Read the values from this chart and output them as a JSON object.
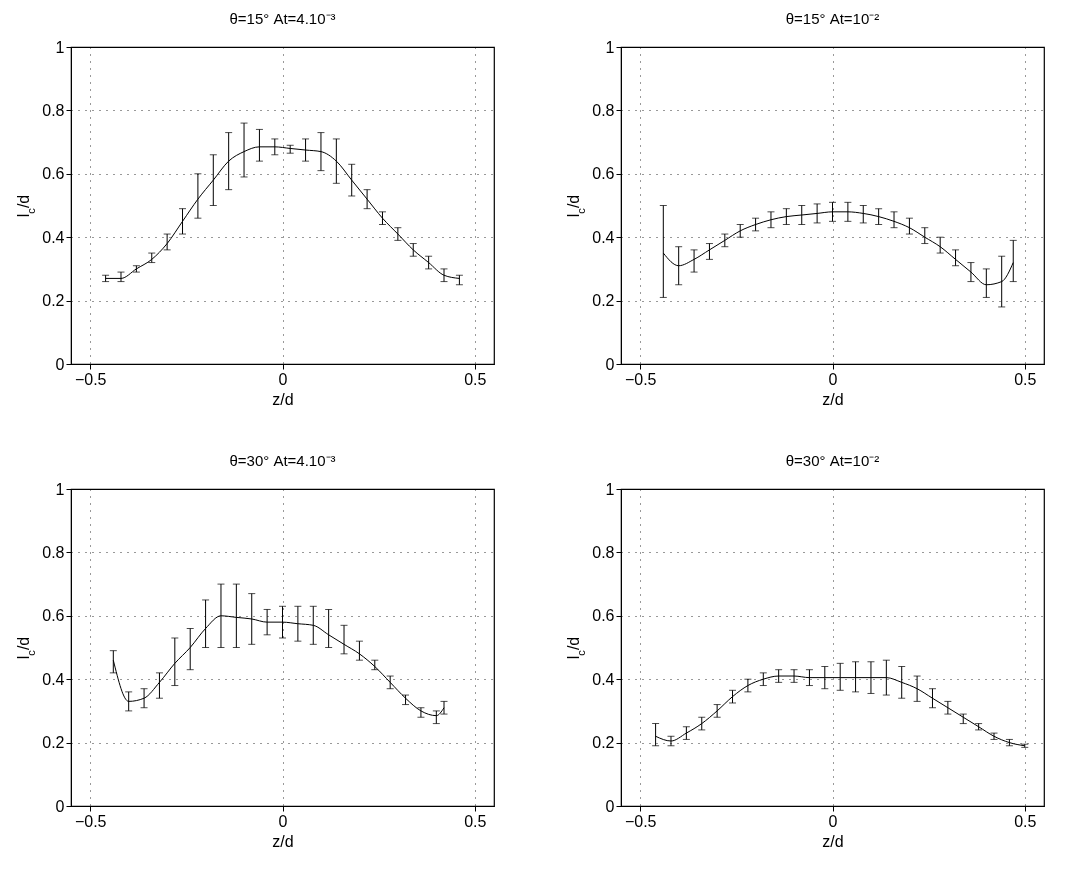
{
  "chart_data": [
    {
      "type": "line",
      "title": "θ=15°  At=4.10⁻³",
      "xlabel": "z/d",
      "ylabel": "l$_{c}$/d",
      "xlim": [
        -0.55,
        0.55
      ],
      "ylim": [
        0,
        1
      ],
      "xticks": [
        -0.5,
        0,
        0.5
      ],
      "yticks": [
        0,
        0.2,
        0.4,
        0.6,
        0.8,
        1
      ],
      "grid": true,
      "x": [
        -0.46,
        -0.42,
        -0.38,
        -0.34,
        -0.3,
        -0.26,
        -0.22,
        -0.18,
        -0.14,
        -0.1,
        -0.06,
        -0.02,
        0.02,
        0.06,
        0.1,
        0.14,
        0.18,
        0.22,
        0.26,
        0.3,
        0.34,
        0.38,
        0.42,
        0.46
      ],
      "series": [
        {
          "color": "#000000",
          "values": [
            0.27,
            0.27,
            0.3,
            0.33,
            0.38,
            0.45,
            0.52,
            0.58,
            0.64,
            0.67,
            0.685,
            0.685,
            0.68,
            0.675,
            0.67,
            0.64,
            0.58,
            0.52,
            0.46,
            0.41,
            0.36,
            0.32,
            0.28,
            0.27
          ],
          "errors": [
            [
              0.26,
              0.28
            ],
            [
              0.26,
              0.29
            ],
            [
              0.29,
              0.31
            ],
            [
              0.32,
              0.35
            ],
            [
              0.36,
              0.41
            ],
            [
              0.41,
              0.49
            ],
            [
              0.46,
              0.6
            ],
            [
              0.5,
              0.66
            ],
            [
              0.55,
              0.73
            ],
            [
              0.59,
              0.76
            ],
            [
              0.64,
              0.74
            ],
            [
              0.66,
              0.71
            ],
            [
              0.665,
              0.69
            ],
            [
              0.64,
              0.71
            ],
            [
              0.61,
              0.73
            ],
            [
              0.57,
              0.71
            ],
            [
              0.53,
              0.63
            ],
            [
              0.49,
              0.55
            ],
            [
              0.44,
              0.48
            ],
            [
              0.39,
              0.43
            ],
            [
              0.34,
              0.38
            ],
            [
              0.3,
              0.34
            ],
            [
              0.26,
              0.3
            ],
            [
              0.25,
              0.28
            ]
          ]
        }
      ]
    },
    {
      "type": "line",
      "title": "θ=15°  At=10⁻²",
      "xlabel": "z/d",
      "ylabel": "l$_{c}$/d",
      "xlim": [
        -0.55,
        0.55
      ],
      "ylim": [
        0,
        1
      ],
      "xticks": [
        -0.5,
        0,
        0.5
      ],
      "yticks": [
        0,
        0.2,
        0.4,
        0.6,
        0.8,
        1
      ],
      "grid": true,
      "x": [
        -0.44,
        -0.4,
        -0.36,
        -0.32,
        -0.28,
        -0.24,
        -0.2,
        -0.16,
        -0.12,
        -0.08,
        -0.04,
        0,
        0.04,
        0.08,
        0.12,
        0.16,
        0.2,
        0.24,
        0.28,
        0.32,
        0.36,
        0.4,
        0.44,
        0.47
      ],
      "series": [
        {
          "color": "#000000",
          "values": [
            0.35,
            0.31,
            0.33,
            0.36,
            0.39,
            0.42,
            0.44,
            0.455,
            0.465,
            0.47,
            0.475,
            0.48,
            0.48,
            0.475,
            0.465,
            0.45,
            0.43,
            0.4,
            0.37,
            0.33,
            0.29,
            0.25,
            0.26,
            0.32
          ],
          "errors": [
            [
              0.21,
              0.5
            ],
            [
              0.25,
              0.37
            ],
            [
              0.29,
              0.36
            ],
            [
              0.33,
              0.38
            ],
            [
              0.37,
              0.41
            ],
            [
              0.4,
              0.44
            ],
            [
              0.42,
              0.46
            ],
            [
              0.43,
              0.48
            ],
            [
              0.44,
              0.49
            ],
            [
              0.44,
              0.5
            ],
            [
              0.445,
              0.505
            ],
            [
              0.45,
              0.51
            ],
            [
              0.45,
              0.51
            ],
            [
              0.445,
              0.5
            ],
            [
              0.44,
              0.49
            ],
            [
              0.43,
              0.48
            ],
            [
              0.41,
              0.46
            ],
            [
              0.38,
              0.43
            ],
            [
              0.35,
              0.4
            ],
            [
              0.31,
              0.36
            ],
            [
              0.26,
              0.32
            ],
            [
              0.21,
              0.3
            ],
            [
              0.18,
              0.34
            ],
            [
              0.26,
              0.39
            ]
          ]
        }
      ]
    },
    {
      "type": "line",
      "title": "θ=30°  At=4.10⁻³",
      "xlabel": "z/d",
      "ylabel": "l$_{c}$/d",
      "xlim": [
        -0.55,
        0.55
      ],
      "ylim": [
        0,
        1
      ],
      "xticks": [
        -0.5,
        0,
        0.5
      ],
      "yticks": [
        0,
        0.2,
        0.4,
        0.6,
        0.8,
        1
      ],
      "grid": true,
      "x": [
        -0.44,
        -0.4,
        -0.36,
        -0.32,
        -0.28,
        -0.24,
        -0.2,
        -0.16,
        -0.12,
        -0.08,
        -0.04,
        0,
        0.04,
        0.08,
        0.12,
        0.16,
        0.2,
        0.24,
        0.28,
        0.32,
        0.36,
        0.4,
        0.42
      ],
      "series": [
        {
          "color": "#000000",
          "values": [
            0.46,
            0.33,
            0.34,
            0.39,
            0.45,
            0.5,
            0.56,
            0.6,
            0.595,
            0.59,
            0.58,
            0.58,
            0.575,
            0.57,
            0.54,
            0.51,
            0.48,
            0.44,
            0.39,
            0.34,
            0.3,
            0.285,
            0.31
          ],
          "errors": [
            [
              0.42,
              0.49
            ],
            [
              0.3,
              0.36
            ],
            [
              0.31,
              0.37
            ],
            [
              0.34,
              0.42
            ],
            [
              0.38,
              0.53
            ],
            [
              0.43,
              0.56
            ],
            [
              0.5,
              0.65
            ],
            [
              0.5,
              0.7
            ],
            [
              0.5,
              0.7
            ],
            [
              0.51,
              0.67
            ],
            [
              0.54,
              0.62
            ],
            [
              0.53,
              0.63
            ],
            [
              0.52,
              0.63
            ],
            [
              0.51,
              0.63
            ],
            [
              0.5,
              0.62
            ],
            [
              0.48,
              0.57
            ],
            [
              0.46,
              0.52
            ],
            [
              0.43,
              0.46
            ],
            [
              0.37,
              0.41
            ],
            [
              0.32,
              0.35
            ],
            [
              0.28,
              0.31
            ],
            [
              0.26,
              0.3
            ],
            [
              0.29,
              0.33
            ]
          ]
        }
      ]
    },
    {
      "type": "line",
      "title": "θ=30°  At=10⁻²",
      "xlabel": "z/d",
      "ylabel": "l$_{c}$/d",
      "xlim": [
        -0.55,
        0.55
      ],
      "ylim": [
        0,
        1
      ],
      "xticks": [
        -0.5,
        0,
        0.5
      ],
      "yticks": [
        0,
        0.2,
        0.4,
        0.6,
        0.8,
        1
      ],
      "grid": true,
      "x": [
        -0.46,
        -0.42,
        -0.38,
        -0.34,
        -0.3,
        -0.26,
        -0.22,
        -0.18,
        -0.14,
        -0.1,
        -0.06,
        -0.02,
        0.02,
        0.06,
        0.1,
        0.14,
        0.18,
        0.22,
        0.26,
        0.3,
        0.34,
        0.38,
        0.42,
        0.46,
        0.5
      ],
      "series": [
        {
          "color": "#000000",
          "values": [
            0.22,
            0.205,
            0.23,
            0.26,
            0.3,
            0.345,
            0.38,
            0.4,
            0.41,
            0.41,
            0.405,
            0.405,
            0.405,
            0.405,
            0.405,
            0.405,
            0.39,
            0.37,
            0.34,
            0.31,
            0.28,
            0.25,
            0.22,
            0.2,
            0.19
          ],
          "errors": [
            [
              0.19,
              0.26
            ],
            [
              0.19,
              0.22
            ],
            [
              0.21,
              0.25
            ],
            [
              0.24,
              0.28
            ],
            [
              0.28,
              0.32
            ],
            [
              0.325,
              0.365
            ],
            [
              0.36,
              0.4
            ],
            [
              0.38,
              0.42
            ],
            [
              0.39,
              0.43
            ],
            [
              0.39,
              0.43
            ],
            [
              0.38,
              0.43
            ],
            [
              0.37,
              0.44
            ],
            [
              0.365,
              0.45
            ],
            [
              0.36,
              0.455
            ],
            [
              0.355,
              0.455
            ],
            [
              0.35,
              0.46
            ],
            [
              0.34,
              0.44
            ],
            [
              0.33,
              0.41
            ],
            [
              0.31,
              0.37
            ],
            [
              0.29,
              0.33
            ],
            [
              0.26,
              0.29
            ],
            [
              0.24,
              0.26
            ],
            [
              0.21,
              0.23
            ],
            [
              0.19,
              0.21
            ],
            [
              0.185,
              0.195
            ]
          ]
        }
      ]
    }
  ]
}
